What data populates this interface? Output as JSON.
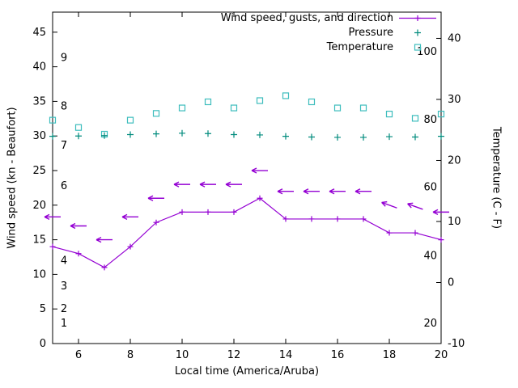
{
  "legend": {
    "wind": "Wind speed, gusts, and direction",
    "pressure": "Pressure",
    "temperature": "Temperature"
  },
  "axes": {
    "xlabel": "Local time (America/Aruba)",
    "ylabel_left": "Wind speed (kn - Beaufort)",
    "ylabel_right": "Temperature (C - F)"
  },
  "chart_data": {
    "type": "line",
    "title": "",
    "xlabel": "Local time (America/Aruba)",
    "x": [
      5,
      6,
      7,
      8,
      9,
      10,
      11,
      12,
      13,
      14,
      15,
      16,
      17,
      18,
      19,
      20
    ],
    "x_range": [
      5,
      20
    ],
    "x_ticks": [
      6,
      8,
      10,
      12,
      14,
      16,
      18,
      20
    ],
    "y_left": {
      "label": "Wind speed (kn - Beaufort)",
      "range": [
        0,
        47.9
      ],
      "ticks": [
        0,
        5,
        10,
        15,
        20,
        25,
        30,
        35,
        40,
        45
      ]
    },
    "y_right": {
      "label": "Temperature (C - F)",
      "range": [
        -10,
        44.3
      ],
      "ticks": [
        -10,
        0,
        10,
        20,
        30,
        40
      ]
    },
    "series": [
      {
        "name": "Wind speed, gusts, and direction",
        "axis": "left",
        "color": "#9400d3",
        "marker": "plus",
        "style": "line",
        "values": [
          14,
          13,
          11,
          14,
          17.5,
          19,
          19,
          19,
          21,
          18,
          18,
          18,
          18,
          16,
          16,
          15
        ],
        "gusts": [
          18.3,
          17,
          15,
          18.3,
          21,
          23,
          23,
          23,
          25,
          22,
          22,
          22,
          22,
          20,
          19.8,
          19
        ],
        "gust_angles_deg": [
          0,
          0,
          0,
          0,
          0,
          0,
          0,
          0,
          0,
          0,
          0,
          0,
          0,
          20,
          20,
          0
        ]
      },
      {
        "name": "Pressure",
        "axis": "left",
        "color": "#008b7d",
        "marker": "plus",
        "style": "points",
        "values": [
          29.95,
          30.0,
          30.05,
          30.2,
          30.3,
          30.4,
          30.35,
          30.2,
          30.15,
          29.95,
          29.85,
          29.8,
          29.8,
          29.9,
          29.85,
          29.95
        ]
      },
      {
        "name": "Temperature",
        "axis": "right",
        "color": "#3dbdbd",
        "marker": "square",
        "style": "points",
        "values": [
          26.6,
          25.4,
          24.3,
          26.6,
          27.7,
          28.6,
          29.6,
          28.6,
          29.8,
          30.6,
          29.6,
          28.6,
          28.6,
          27.6,
          26.9,
          27.6
        ]
      }
    ],
    "beaufort_scale_labels": [
      {
        "text": "1",
        "kn": 2.9
      },
      {
        "text": "2",
        "kn": 5
      },
      {
        "text": "3",
        "kn": 8.3
      },
      {
        "text": "4",
        "kn": 12
      },
      {
        "text": "6",
        "kn": 22.8
      },
      {
        "text": "7",
        "kn": 28.6
      },
      {
        "text": "8",
        "kn": 34.3
      },
      {
        "text": "9",
        "kn": 41.3
      }
    ],
    "fahrenheit_scale_labels": [
      {
        "text": "20",
        "c": -6.7
      },
      {
        "text": "40",
        "c": 4.4
      },
      {
        "text": "60",
        "c": 15.6
      },
      {
        "text": "80",
        "c": 26.7
      },
      {
        "text": "100",
        "c": 37.8
      }
    ],
    "grid": false,
    "legend_position": "top-right-inside"
  }
}
